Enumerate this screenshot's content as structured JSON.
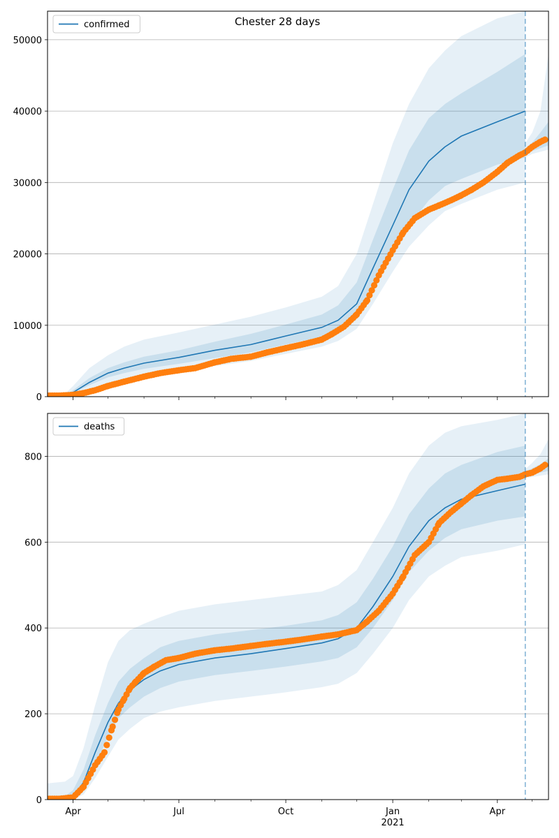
{
  "figure": {
    "title": "Chester 28 days"
  },
  "colors": {
    "model_line": "#1f77b4",
    "band": "#1f77b4",
    "observed": "#ff7f0e",
    "grid": "#b0b0b0",
    "vline": "#1f77b4"
  },
  "chart_data": [
    {
      "type": "line",
      "legend_label": "confirmed",
      "legend_position": "top-left",
      "grid": "horizontal",
      "xlim": [
        "2020-03-10",
        "2021-05-15"
      ],
      "ylim": [
        0,
        54000
      ],
      "yticks": [
        0,
        10000,
        20000,
        30000,
        40000,
        50000
      ],
      "vline_date": "2021-04-25",
      "model": {
        "x": [
          "2020-03-10",
          "2020-03-25",
          "2020-04-01",
          "2020-04-15",
          "2020-05-01",
          "2020-05-15",
          "2020-06-01",
          "2020-07-01",
          "2020-08-01",
          "2020-09-01",
          "2020-10-01",
          "2020-11-01",
          "2020-11-15",
          "2020-12-01",
          "2020-12-15",
          "2021-01-01",
          "2021-01-15",
          "2021-02-01",
          "2021-02-15",
          "2021-03-01",
          "2021-04-01",
          "2021-04-25"
        ],
        "median": [
          150,
          200,
          600,
          2000,
          3300,
          4000,
          4700,
          5500,
          6500,
          7300,
          8500,
          9700,
          10700,
          13000,
          18000,
          24000,
          29000,
          33000,
          35000,
          36500,
          38500,
          40000
        ],
        "band_50": [
          [
            150,
            150
          ],
          [
            200,
            220
          ],
          [
            450,
            900
          ],
          [
            1600,
            2600
          ],
          [
            2700,
            4000
          ],
          [
            3300,
            4800
          ],
          [
            3900,
            5600
          ],
          [
            4600,
            6500
          ],
          [
            5400,
            7700
          ],
          [
            6200,
            8800
          ],
          [
            7300,
            10100
          ],
          [
            8400,
            11500
          ],
          [
            9200,
            12800
          ],
          [
            11000,
            16000
          ],
          [
            15000,
            22000
          ],
          [
            20000,
            29000
          ],
          [
            24000,
            34500
          ],
          [
            27500,
            39000
          ],
          [
            29500,
            41000
          ],
          [
            30500,
            42500
          ],
          [
            32500,
            45500
          ],
          [
            33500,
            48000
          ]
        ],
        "band_90": [
          [
            100,
            250
          ],
          [
            150,
            400
          ],
          [
            300,
            1500
          ],
          [
            1000,
            4000
          ],
          [
            1800,
            5800
          ],
          [
            2400,
            7000
          ],
          [
            2800,
            8000
          ],
          [
            3500,
            9000
          ],
          [
            4300,
            10100
          ],
          [
            5000,
            11200
          ],
          [
            6000,
            12500
          ],
          [
            7000,
            14000
          ],
          [
            7800,
            15500
          ],
          [
            9500,
            20000
          ],
          [
            13000,
            27000
          ],
          [
            17500,
            35500
          ],
          [
            21000,
            41000
          ],
          [
            24000,
            46000
          ],
          [
            26000,
            48500
          ],
          [
            27000,
            50500
          ],
          [
            29000,
            53000
          ],
          [
            30000,
            54000
          ]
        ]
      },
      "forecast": {
        "x": [
          "2021-04-25",
          "2021-05-01",
          "2021-05-08",
          "2021-05-15"
        ],
        "median": [
          34500,
          35000,
          35500,
          36000
        ],
        "band_50": [
          [
            34000,
            34800
          ],
          [
            34400,
            35600
          ],
          [
            34800,
            37000
          ],
          [
            35200,
            38500
          ]
        ],
        "band_90": [
          [
            33500,
            35500
          ],
          [
            34000,
            37000
          ],
          [
            34300,
            40000
          ],
          [
            34600,
            48000
          ]
        ]
      },
      "observed": {
        "x": [
          "2020-03-10",
          "2020-03-20",
          "2020-04-01",
          "2020-04-10",
          "2020-04-20",
          "2020-05-01",
          "2020-05-15",
          "2020-06-01",
          "2020-06-15",
          "2020-07-01",
          "2020-07-15",
          "2020-08-01",
          "2020-08-15",
          "2020-09-01",
          "2020-09-15",
          "2020-10-01",
          "2020-10-15",
          "2020-11-01",
          "2020-11-10",
          "2020-11-20",
          "2020-12-01",
          "2020-12-10",
          "2020-12-20",
          "2021-01-01",
          "2021-01-10",
          "2021-01-20",
          "2021-02-01",
          "2021-02-10",
          "2021-02-20",
          "2021-03-01",
          "2021-03-10",
          "2021-03-20",
          "2021-04-01",
          "2021-04-10",
          "2021-04-20",
          "2021-04-25",
          "2021-05-01",
          "2021-05-08",
          "2021-05-12"
        ],
        "y": [
          150,
          150,
          250,
          500,
          900,
          1500,
          2100,
          2800,
          3300,
          3700,
          4000,
          4800,
          5300,
          5600,
          6200,
          6800,
          7300,
          8000,
          8800,
          9800,
          11500,
          13500,
          17000,
          20500,
          23000,
          25000,
          26200,
          26800,
          27500,
          28200,
          29000,
          30000,
          31500,
          32800,
          33800,
          34200,
          35000,
          35700,
          36000
        ]
      }
    },
    {
      "type": "line",
      "legend_label": "deaths",
      "legend_position": "top-left",
      "grid": "horizontal",
      "xlim": [
        "2020-03-10",
        "2021-05-15"
      ],
      "ylim": [
        0,
        900
      ],
      "yticks": [
        0,
        200,
        400,
        600,
        800
      ],
      "vline_date": "2021-04-25",
      "model": {
        "x": [
          "2020-03-10",
          "2020-03-25",
          "2020-04-01",
          "2020-04-10",
          "2020-04-20",
          "2020-05-01",
          "2020-05-10",
          "2020-05-20",
          "2020-06-01",
          "2020-06-15",
          "2020-07-01",
          "2020-08-01",
          "2020-09-01",
          "2020-10-01",
          "2020-11-01",
          "2020-11-15",
          "2020-12-01",
          "2020-12-15",
          "2021-01-01",
          "2021-01-15",
          "2021-02-01",
          "2021-02-15",
          "2021-03-01",
          "2021-04-01",
          "2021-04-25"
        ],
        "median": [
          0,
          2,
          8,
          40,
          110,
          180,
          225,
          255,
          280,
          300,
          315,
          330,
          340,
          352,
          365,
          375,
          400,
          450,
          520,
          590,
          650,
          680,
          700,
          720,
          735
        ],
        "band_50": [
          [
            0,
            5
          ],
          [
            0,
            8
          ],
          [
            3,
            22
          ],
          [
            25,
            70
          ],
          [
            80,
            150
          ],
          [
            145,
            225
          ],
          [
            190,
            275
          ],
          [
            215,
            305
          ],
          [
            240,
            330
          ],
          [
            260,
            355
          ],
          [
            275,
            370
          ],
          [
            290,
            385
          ],
          [
            300,
            395
          ],
          [
            310,
            405
          ],
          [
            322,
            418
          ],
          [
            330,
            430
          ],
          [
            355,
            460
          ],
          [
            400,
            515
          ],
          [
            465,
            590
          ],
          [
            530,
            665
          ],
          [
            580,
            725
          ],
          [
            610,
            760
          ],
          [
            630,
            780
          ],
          [
            650,
            810
          ],
          [
            660,
            825
          ]
        ],
        "band_90": [
          [
            0,
            38
          ],
          [
            0,
            42
          ],
          [
            0,
            55
          ],
          [
            12,
            120
          ],
          [
            50,
            220
          ],
          [
            100,
            320
          ],
          [
            140,
            370
          ],
          [
            165,
            395
          ],
          [
            190,
            410
          ],
          [
            205,
            425
          ],
          [
            215,
            440
          ],
          [
            230,
            455
          ],
          [
            240,
            465
          ],
          [
            250,
            475
          ],
          [
            262,
            485
          ],
          [
            270,
            500
          ],
          [
            295,
            535
          ],
          [
            340,
            600
          ],
          [
            400,
            680
          ],
          [
            465,
            760
          ],
          [
            520,
            825
          ],
          [
            545,
            855
          ],
          [
            565,
            870
          ],
          [
            580,
            885
          ],
          [
            595,
            900
          ]
        ]
      },
      "forecast": {
        "x": [
          "2021-04-25",
          "2021-05-01",
          "2021-05-08",
          "2021-05-15"
        ],
        "median": [
          760,
          765,
          772,
          778
        ],
        "band_50": [
          [
            755,
            765
          ],
          [
            758,
            772
          ],
          [
            762,
            782
          ],
          [
            766,
            795
          ]
        ],
        "band_90": [
          [
            750,
            770
          ],
          [
            752,
            785
          ],
          [
            755,
            805
          ],
          [
            758,
            840
          ]
        ]
      },
      "observed": {
        "x": [
          "2020-03-10",
          "2020-03-20",
          "2020-04-01",
          "2020-04-10",
          "2020-04-20",
          "2020-04-28",
          "2020-05-05",
          "2020-05-10",
          "2020-05-15",
          "2020-05-20",
          "2020-05-25",
          "2020-06-01",
          "2020-06-10",
          "2020-06-20",
          "2020-07-01",
          "2020-07-15",
          "2020-08-01",
          "2020-08-15",
          "2020-09-01",
          "2020-09-15",
          "2020-10-01",
          "2020-10-15",
          "2020-11-01",
          "2020-11-15",
          "2020-12-01",
          "2020-12-10",
          "2020-12-20",
          "2021-01-01",
          "2021-01-10",
          "2021-01-20",
          "2021-02-01",
          "2021-02-10",
          "2021-02-20",
          "2021-03-01",
          "2021-03-10",
          "2021-03-20",
          "2021-04-01",
          "2021-04-10",
          "2021-04-20",
          "2021-04-25",
          "2021-05-01",
          "2021-05-08",
          "2021-05-12"
        ],
        "y": [
          2,
          2,
          5,
          30,
          80,
          110,
          170,
          210,
          235,
          260,
          275,
          295,
          310,
          325,
          330,
          340,
          348,
          352,
          358,
          363,
          368,
          373,
          380,
          385,
          395,
          415,
          440,
          480,
          520,
          570,
          600,
          645,
          670,
          690,
          710,
          730,
          745,
          748,
          752,
          758,
          762,
          772,
          780
        ]
      }
    }
  ],
  "xaxis": {
    "ticks_major": [
      {
        "date": "2020-04-01",
        "label": "Apr"
      },
      {
        "date": "2020-07-01",
        "label": "Jul"
      },
      {
        "date": "2020-10-01",
        "label": "Oct"
      },
      {
        "date": "2021-01-01",
        "label": "Jan"
      },
      {
        "date": "2021-04-01",
        "label": "Apr"
      }
    ],
    "year_label": {
      "date": "2021-01-01",
      "label": "2021"
    },
    "ticks_minor": [
      "2020-05-01",
      "2020-06-01",
      "2020-08-01",
      "2020-09-01",
      "2020-11-01",
      "2020-12-01",
      "2021-02-01",
      "2021-03-01",
      "2021-05-01"
    ]
  }
}
